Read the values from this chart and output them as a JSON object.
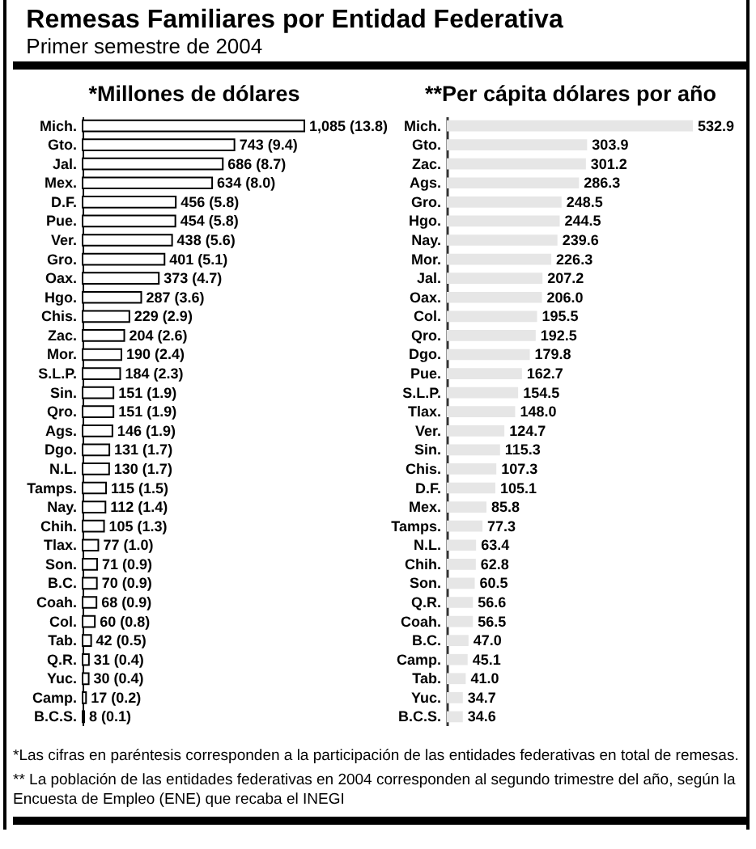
{
  "chart_data": [
    {
      "type": "bar",
      "orientation": "horizontal",
      "title": "Remesas Familiares por Entidad Federativa",
      "subtitle": "Primer semestre de 2004",
      "xlabel": "*Millones de dólares",
      "categories": [
        "Mich.",
        "Gto.",
        "Jal.",
        "Mex.",
        "D.F.",
        "Pue.",
        "Ver.",
        "Gro.",
        "Oax.",
        "Hgo.",
        "Chis.",
        "Zac.",
        "Mor.",
        "S.L.P.",
        "Sin.",
        "Qro.",
        "Ags.",
        "Dgo.",
        "N.L.",
        "Tamps.",
        "Nay.",
        "Chih.",
        "Tlax.",
        "Son.",
        "B.C.",
        "Coah.",
        "Col.",
        "Tab.",
        "Q.R.",
        "Yuc.",
        "Camp.",
        "B.C.S."
      ],
      "values": [
        1085,
        743,
        686,
        634,
        456,
        454,
        438,
        401,
        373,
        287,
        229,
        204,
        190,
        184,
        151,
        151,
        146,
        131,
        130,
        115,
        112,
        105,
        77,
        71,
        70,
        68,
        60,
        42,
        31,
        30,
        17,
        8
      ],
      "value_labels": [
        "1,085 (13.8)",
        "743 (9.4)",
        "686 (8.7)",
        "634 (8.0)",
        "456 (5.8)",
        "454 (5.8)",
        "438 (5.6)",
        "401 (5.1)",
        "373 (4.7)",
        "287 (3.6)",
        "229 (2.9)",
        "204 (2.6)",
        "190 (2.4)",
        "184 (2.3)",
        "151 (1.9)",
        "151 (1.9)",
        "146 (1.9)",
        "131 (1.7)",
        "130 (1.7)",
        "115 (1.5)",
        "112 (1.4)",
        "105 (1.3)",
        "77 (1.0)",
        "71 (0.9)",
        "70 (0.9)",
        "68 (0.9)",
        "60 (0.8)",
        "42 (0.5)",
        "31 (0.4)",
        "30 (0.4)",
        "17 (0.2)",
        "8 (0.1)"
      ],
      "color": "#ffffff",
      "tick_labels": "y",
      "annotations": [
        "*Las cifras en paréntesis corresponden a la participación de las entidades federativas en total de remesas.",
        "** La población de las entidades federativas en 2004 corresponden al segundo trimestre del año, según la Encuesta de Empleo (ENE) que recaba el INEGI"
      ]
    },
    {
      "type": "bar",
      "orientation": "horizontal",
      "xlabel": "**Per cápita dólares por año",
      "categories": [
        "Mich.",
        "Gto.",
        "Zac.",
        "Ags.",
        "Gro.",
        "Hgo.",
        "Nay.",
        "Mor.",
        "Jal.",
        "Oax.",
        "Col.",
        "Qro.",
        "Dgo.",
        "Pue.",
        "S.L.P.",
        "Tlax.",
        "Ver.",
        "Sin.",
        "Chis.",
        "D.F.",
        "Mex.",
        "Tamps.",
        "N.L.",
        "Chih.",
        "Son.",
        "Q.R.",
        "Coah.",
        "B.C.",
        "Camp.",
        "Tab.",
        "Yuc.",
        "B.C.S."
      ],
      "values": [
        532.9,
        303.9,
        301.2,
        286.3,
        248.5,
        244.5,
        239.6,
        226.3,
        207.2,
        206.0,
        195.5,
        192.5,
        179.8,
        162.7,
        154.5,
        148.0,
        124.7,
        115.3,
        107.3,
        105.1,
        85.8,
        77.3,
        63.4,
        62.8,
        60.5,
        56.6,
        56.5,
        47.0,
        45.1,
        41.0,
        34.7,
        34.6
      ],
      "value_labels": [
        "532.9",
        "303.9",
        "301.2",
        "286.3",
        "248.5",
        "244.5",
        "239.6",
        "226.3",
        "207.2",
        "206.0",
        "195.5",
        "192.5",
        "179.8",
        "162.7",
        "154.5",
        "148.0",
        "124.7",
        "115.3",
        "107.3",
        "105.1",
        "85.8",
        "77.3",
        "63.4",
        "62.8",
        "60.5",
        "56.6",
        "56.5",
        "47.0",
        "45.1",
        "41.0",
        "34.7",
        "34.6"
      ],
      "color": "#e6e6e6",
      "tick_labels": "y"
    }
  ]
}
